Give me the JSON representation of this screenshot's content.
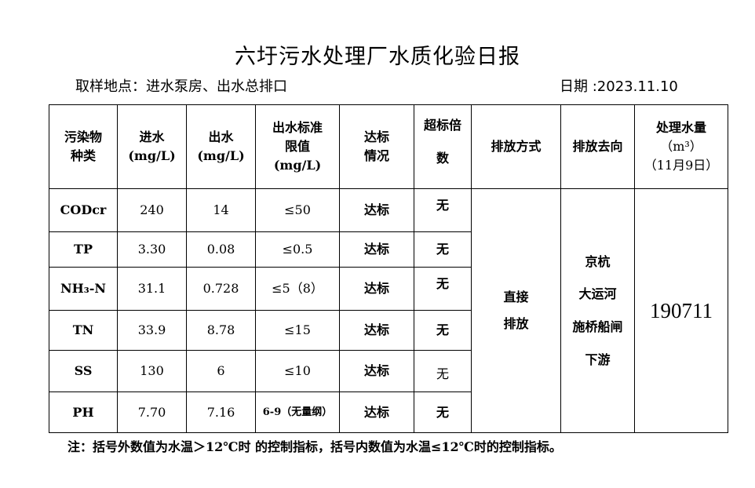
{
  "title": "六圩污水处理厂水质化验日报",
  "location": "取样地点：进水泵房、出水总排口",
  "date": "日期 :2023.11.10",
  "headers": [
    "污染物种类",
    "进水(mg/L)",
    "出水(mg/L)",
    "出水标准限值(mg/L)",
    "达标情况",
    "超标倍数",
    "排放方式",
    "排放去向",
    "处理水量(m³)(11月9日)"
  ],
  "header_lines": {
    "pollutant": [
      "污染物",
      "种类"
    ],
    "inflow": [
      "进水",
      "(mg/L)"
    ],
    "outflow": [
      "出水",
      "(mg/L)"
    ],
    "limit": [
      "出水标准",
      "限值",
      "(mg/L)"
    ],
    "status": [
      "达标",
      "情况"
    ],
    "exceed": [
      "超标倍",
      "数"
    ],
    "method": "排放方式",
    "destination": "排放去向",
    "volume": [
      "处理水量",
      "（m³）",
      "（11月9日）"
    ]
  },
  "rows": [
    {
      "name": "CODcr",
      "in": "240",
      "out": "14",
      "limit": "≤50",
      "status": "达标",
      "exceed": "无"
    },
    {
      "name": "TP",
      "in": "3.30",
      "out": "0.08",
      "limit": "≤0.5",
      "status": "达标",
      "exceed": "无"
    },
    {
      "name": "NH₃-N",
      "in": "31.1",
      "out": "0.728",
      "limit": "≤5（8）",
      "status": "达标",
      "exceed": "无"
    },
    {
      "name": "TN",
      "in": "33.9",
      "out": "8.78",
      "limit": "≤15",
      "status": "达标",
      "exceed": "无"
    },
    {
      "name": "SS",
      "in": "130",
      "out": "6",
      "limit": "≤10",
      "status": "达标",
      "exceed": "无"
    },
    {
      "name": "PH",
      "in": "7.70",
      "out": "7.16",
      "limit": "6-9（无量纲）",
      "status": "达标",
      "exceed": "无"
    }
  ],
  "method_value": [
    "直接",
    "排放"
  ],
  "destination_value": [
    "京杭",
    "大运河",
    "施桥船闸",
    "下游"
  ],
  "volume_value": "190711",
  "note": "注：括号外数值为水温＞12℃时 的控制指标，括号内数值为水温≤12℃时的控制指标。"
}
